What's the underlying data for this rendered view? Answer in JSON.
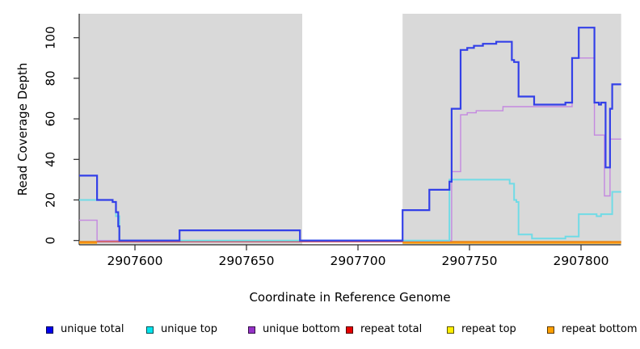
{
  "chart_data": {
    "type": "line",
    "style": "step-after",
    "title": "",
    "xlabel": "Coordinate in Reference Genome",
    "ylabel": "Read Coverage Depth",
    "xlim": [
      2907575,
      2907818
    ],
    "ylim": [
      0,
      110
    ],
    "xticks": [
      2907600,
      2907650,
      2907700,
      2907750,
      2907800
    ],
    "yticks": [
      0,
      20,
      40,
      60,
      80,
      100
    ],
    "grid": false,
    "plot_background_color": "#d9d9d9",
    "masked_white_region": [
      2907675,
      2907720
    ],
    "shaded_regions": [
      [
        2907575,
        2907675
      ],
      [
        2907720,
        2907818
      ]
    ],
    "legend_position": "bottom",
    "series": [
      {
        "name": "unique total",
        "line_color": "#3340e8",
        "legend_color": "#0000ee",
        "width": 2.2,
        "segments": [
          {
            "xend": 2907818,
            "points": [
              [
                2907575,
                32
              ],
              [
                2907583,
                20
              ],
              [
                2907590,
                19
              ],
              [
                2907591.5,
                14
              ],
              [
                2907592.5,
                7
              ],
              [
                2907593,
                0
              ],
              [
                2907620,
                5
              ],
              [
                2907674,
                0
              ],
              [
                2907720,
                15
              ],
              [
                2907732,
                25
              ],
              [
                2907741,
                29
              ],
              [
                2907742,
                65
              ],
              [
                2907746,
                94
              ],
              [
                2907749,
                95
              ],
              [
                2907752,
                96
              ],
              [
                2907756,
                97
              ],
              [
                2907762,
                98
              ],
              [
                2907769,
                89
              ],
              [
                2907770,
                88
              ],
              [
                2907772,
                71
              ],
              [
                2907779,
                67
              ],
              [
                2907793,
                68
              ],
              [
                2907796,
                90
              ],
              [
                2907799,
                105
              ],
              [
                2907806,
                68
              ],
              [
                2907808,
                67
              ],
              [
                2907809,
                68
              ],
              [
                2907811,
                36
              ],
              [
                2907813,
                65
              ],
              [
                2907814,
                77
              ]
            ]
          }
        ]
      },
      {
        "name": "unique top",
        "line_color": "#70dbe6",
        "legend_color": "#00e5ee",
        "width": 2,
        "segments": [
          {
            "xend": 2907818,
            "points": [
              [
                2907575,
                20
              ],
              [
                2907590,
                19
              ],
              [
                2907591.5,
                12
              ],
              [
                2907593,
                0
              ],
              [
                2907741,
                30
              ],
              [
                2907768,
                28
              ],
              [
                2907770,
                20
              ],
              [
                2907771,
                19
              ],
              [
                2907772,
                3
              ],
              [
                2907778,
                1
              ],
              [
                2907793,
                2
              ],
              [
                2907799,
                13
              ],
              [
                2907807,
                12
              ],
              [
                2907809,
                13
              ],
              [
                2907814,
                24
              ]
            ]
          }
        ]
      },
      {
        "name": "unique bottom",
        "line_color": "#c488e0",
        "legend_color": "#9632c8",
        "width": 1.4,
        "segments": [
          {
            "xend": 2907818,
            "points": [
              [
                2907575,
                10
              ],
              [
                2907583,
                0
              ],
              [
                2907742,
                34
              ],
              [
                2907746,
                62
              ],
              [
                2907749,
                63
              ],
              [
                2907753,
                64
              ],
              [
                2907765,
                66
              ],
              [
                2907796,
                90
              ],
              [
                2907806,
                52
              ],
              [
                2907810.5,
                22
              ],
              [
                2907813,
                50
              ]
            ]
          }
        ]
      },
      {
        "name": "repeat total",
        "line_color": "#cc4466",
        "legend_color": "#e60000",
        "width": 1.3,
        "segments": [
          {
            "xend": 2907818,
            "points": [
              [
                2907575,
                0
              ]
            ]
          }
        ]
      },
      {
        "name": "repeat top",
        "line_color": "#eedd00",
        "legend_color": "#ffee00",
        "width": 1.2,
        "segments": [
          {
            "xend": 2907818,
            "points": [
              [
                2907575,
                0
              ]
            ]
          }
        ]
      },
      {
        "name": "repeat bottom",
        "line_color": "#ff9d00",
        "legend_color": "#ffa000",
        "width": 2.2,
        "segments": [
          {
            "xend": 2907583,
            "points": [
              [
                2907575,
                0
              ]
            ]
          },
          {
            "xend": 2907818,
            "points": [
              [
                2907720,
                0
              ]
            ]
          }
        ]
      }
    ],
    "legend": [
      {
        "label": "unique total"
      },
      {
        "label": "unique top"
      },
      {
        "label": "unique bottom"
      },
      {
        "label": "repeat total"
      },
      {
        "label": "repeat top"
      },
      {
        "label": "repeat bottom"
      }
    ]
  }
}
